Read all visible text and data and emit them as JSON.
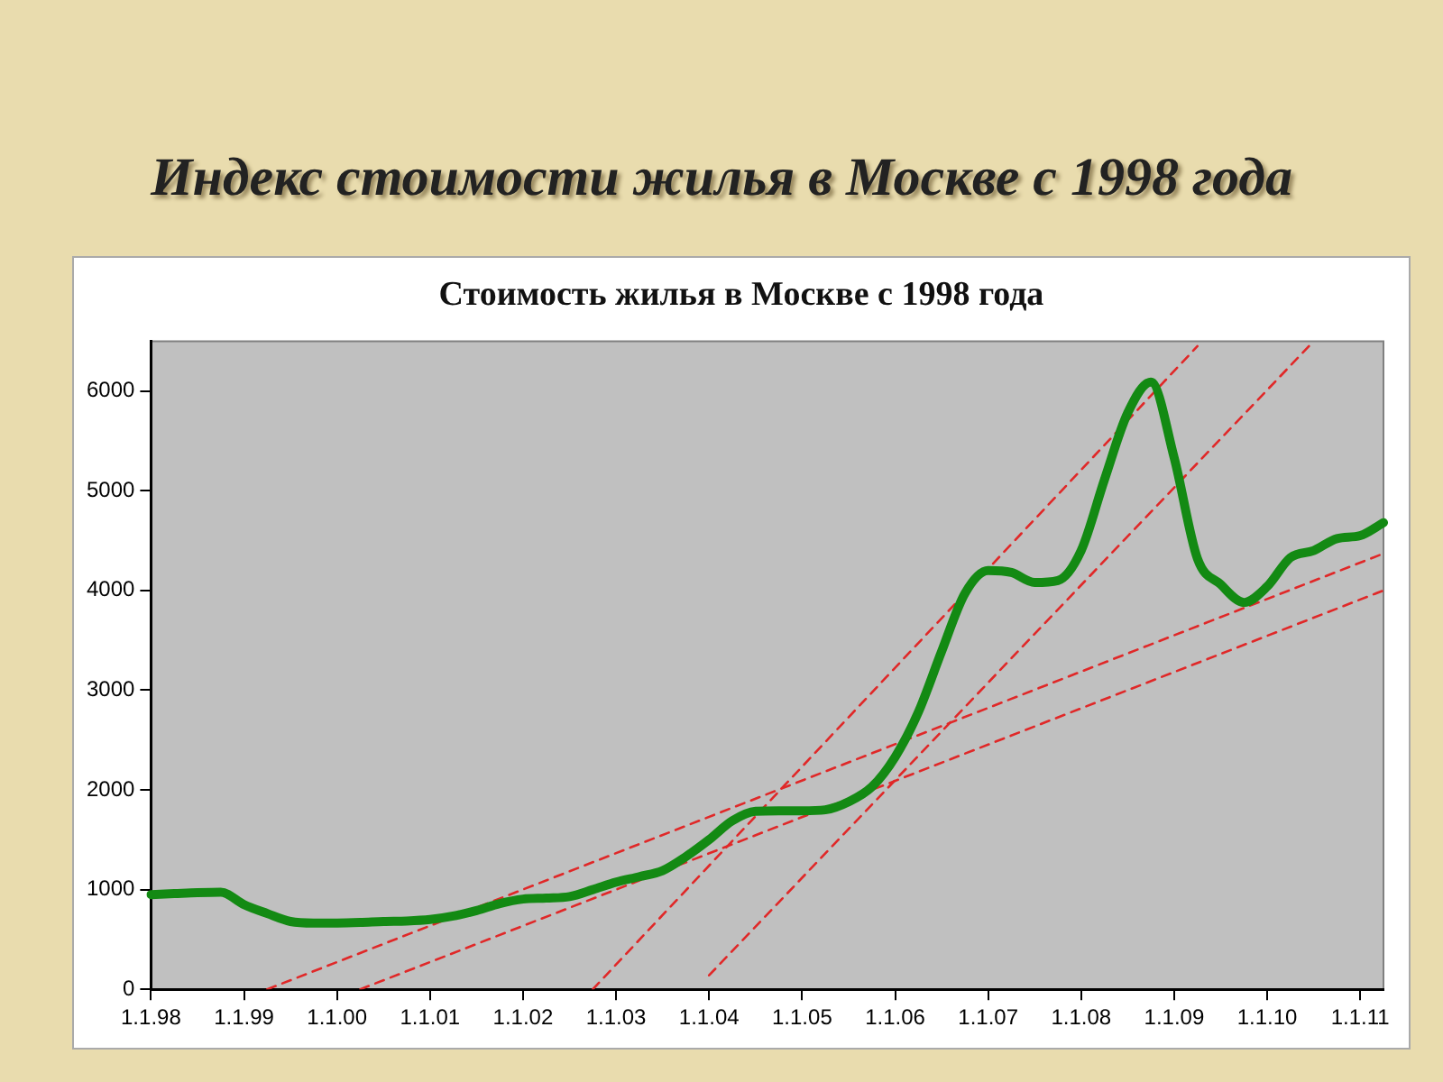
{
  "chart_data": {
    "type": "line",
    "title": "Индекс стоимости жилья в Москве с 1998 года",
    "subtitle": "Стоимость жилья в Москве с 1998 года",
    "categories": [
      "1.1.98",
      null,
      null,
      null,
      "1.1.99",
      null,
      null,
      null,
      "1.1.00",
      null,
      null,
      null,
      "1.1.01",
      null,
      null,
      null,
      "1.1.02",
      null,
      null,
      null,
      "1.1.03",
      null,
      null,
      null,
      "1.1.04",
      null,
      null,
      null,
      "1.1.05",
      null,
      null,
      null,
      "1.1.06",
      null,
      null,
      null,
      "1.1.07",
      null,
      null,
      null,
      "1.1.08",
      null,
      null,
      null,
      "1.1.09",
      null,
      null,
      null,
      "1.1.10",
      null,
      null,
      null,
      "1.1.11",
      null
    ],
    "ylim": [
      0,
      6500
    ],
    "yticks": [
      0,
      1000,
      2000,
      3000,
      4000,
      5000,
      6000
    ],
    "marker": "none",
    "legend": false,
    "series": [
      {
        "color": "#138a13",
        "line_style": "solid",
        "values": [
          950,
          960,
          970,
          975,
          850,
          760,
          680,
          665,
          665,
          670,
          680,
          685,
          700,
          735,
          790,
          860,
          905,
          915,
          930,
          1000,
          1075,
          1130,
          1190,
          1330,
          1500,
          1690,
          1785,
          1790,
          1790,
          1800,
          1880,
          2030,
          2330,
          2780,
          3390,
          3970,
          4200,
          4180,
          4080,
          4100,
          4400,
          5110,
          5780,
          6090,
          5330,
          4320,
          4060,
          3880,
          4040,
          4330,
          4400,
          4520,
          4550,
          4680
        ]
      },
      {
        "color": "#e02828",
        "line_style": "dashed",
        "values": [
          null,
          null,
          null,
          null,
          null,
          0,
          null,
          null,
          null,
          null,
          null,
          null,
          null,
          null,
          null,
          null,
          null,
          null,
          null,
          null,
          null,
          null,
          null,
          null,
          null,
          null,
          null,
          null,
          null,
          null,
          null,
          null,
          null,
          null,
          null,
          null,
          null,
          null,
          null,
          null,
          null,
          null,
          null,
          null,
          null,
          null,
          null,
          null,
          null,
          null,
          null,
          null,
          null,
          4370
        ]
      },
      {
        "color": "#e02828",
        "line_style": "dashed",
        "values": [
          null,
          null,
          null,
          null,
          null,
          null,
          null,
          null,
          null,
          0,
          null,
          null,
          null,
          null,
          null,
          null,
          null,
          null,
          null,
          null,
          null,
          null,
          null,
          null,
          null,
          null,
          null,
          null,
          null,
          null,
          null,
          null,
          null,
          null,
          null,
          null,
          null,
          null,
          null,
          null,
          null,
          null,
          null,
          null,
          null,
          null,
          null,
          null,
          null,
          null,
          null,
          null,
          null,
          4000
        ]
      },
      {
        "color": "#e02828",
        "line_style": "dashed",
        "values": [
          null,
          null,
          null,
          null,
          null,
          null,
          null,
          null,
          null,
          null,
          null,
          null,
          null,
          null,
          null,
          null,
          null,
          null,
          null,
          0,
          null,
          null,
          null,
          null,
          null,
          null,
          null,
          null,
          null,
          null,
          null,
          null,
          null,
          null,
          null,
          null,
          null,
          null,
          null,
          null,
          null,
          null,
          null,
          null,
          null,
          6450,
          null,
          null,
          null,
          null,
          null,
          null,
          null,
          null
        ]
      },
      {
        "color": "#e02828",
        "line_style": "dashed",
        "values": [
          null,
          null,
          null,
          null,
          null,
          null,
          null,
          null,
          null,
          null,
          null,
          null,
          null,
          null,
          null,
          null,
          null,
          null,
          null,
          null,
          null,
          null,
          null,
          null,
          140,
          null,
          null,
          null,
          null,
          null,
          null,
          null,
          null,
          null,
          null,
          null,
          null,
          null,
          null,
          null,
          null,
          null,
          null,
          null,
          null,
          null,
          null,
          null,
          null,
          null,
          6500,
          null,
          null,
          null
        ]
      }
    ]
  }
}
